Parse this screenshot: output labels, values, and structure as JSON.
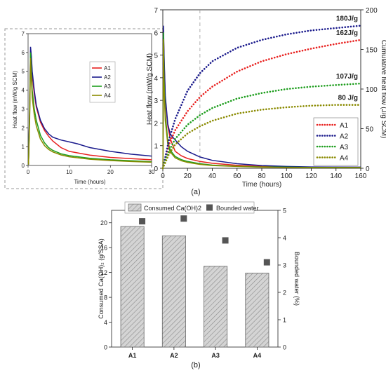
{
  "figure": {
    "panel_a_label": "(a)",
    "panel_b_label": "(b)"
  },
  "chart_data": [
    {
      "id": "inset",
      "type": "line",
      "xlabel": "Time (hours)",
      "ylabel": "Heat flow (mW/g SCM)",
      "xlim": [
        0,
        30
      ],
      "ylim": [
        0,
        7
      ],
      "xticks": [
        0,
        10,
        20,
        30
      ],
      "yticks": [
        0,
        1,
        2,
        3,
        4,
        5,
        6,
        7
      ],
      "legend": "center-right",
      "series": [
        {
          "name": "A1",
          "color": "#e8211f",
          "x": [
            0.1,
            0.4,
            0.6,
            0.8,
            1,
            1.5,
            2,
            3,
            4,
            5,
            6,
            8,
            10,
            15,
            20,
            25,
            30
          ],
          "y": [
            0.05,
            3.0,
            6.1,
            5.6,
            4.8,
            3.8,
            3.1,
            2.3,
            1.85,
            1.55,
            1.3,
            0.95,
            0.75,
            0.55,
            0.43,
            0.36,
            0.3
          ]
        },
        {
          "name": "A2",
          "color": "#1a1a8c",
          "x": [
            0.1,
            0.4,
            0.6,
            0.8,
            1,
            1.5,
            2,
            3,
            4,
            5,
            6,
            8,
            10,
            12,
            15,
            20,
            25,
            30
          ],
          "y": [
            0.05,
            3.2,
            6.3,
            5.8,
            5.0,
            4.0,
            3.2,
            2.4,
            1.95,
            1.68,
            1.5,
            1.35,
            1.25,
            1.15,
            0.95,
            0.75,
            0.6,
            0.5
          ]
        },
        {
          "name": "A3",
          "color": "#1e9e1e",
          "x": [
            0.1,
            0.4,
            0.6,
            0.8,
            1,
            1.5,
            2,
            3,
            4,
            5,
            6,
            8,
            10,
            15,
            20,
            25,
            30
          ],
          "y": [
            0.05,
            2.8,
            6.0,
            5.0,
            4.0,
            3.0,
            2.4,
            1.6,
            1.2,
            0.95,
            0.8,
            0.62,
            0.52,
            0.38,
            0.3,
            0.25,
            0.2
          ]
        },
        {
          "name": "A4",
          "color": "#8a8a00",
          "x": [
            0.1,
            0.4,
            0.6,
            0.8,
            1,
            1.5,
            2,
            3,
            4,
            5,
            6,
            8,
            10,
            15,
            20,
            25,
            30
          ],
          "y": [
            0.05,
            2.5,
            5.7,
            4.6,
            3.6,
            2.7,
            2.1,
            1.4,
            1.05,
            0.85,
            0.72,
            0.56,
            0.46,
            0.33,
            0.26,
            0.21,
            0.17
          ]
        }
      ]
    },
    {
      "id": "main",
      "type": "line",
      "xlabel": "Time (hours)",
      "ylabel_left": "Heat flow (mW/g SCM)",
      "ylabel_right": "Cumulative heat flow (J/g SCM)",
      "xlim": [
        0,
        160
      ],
      "ylim_left": [
        0,
        7
      ],
      "ylim_right": [
        0,
        200
      ],
      "xticks": [
        0,
        20,
        40,
        60,
        80,
        100,
        120,
        140,
        160
      ],
      "yticks_left": [
        0,
        1,
        2,
        3,
        4,
        5,
        6,
        7
      ],
      "yticks_right": [
        0,
        50,
        100,
        150,
        200
      ],
      "reference_line_x": 30,
      "legend": "bottom-right",
      "heat_flow_series": [
        {
          "name": "A1",
          "color": "#e8211f",
          "x": [
            0.1,
            0.5,
            1,
            2,
            4,
            6,
            10,
            15,
            20,
            30,
            40,
            60,
            80,
            100,
            120,
            160
          ],
          "y": [
            0.05,
            6.1,
            4.8,
            3.1,
            1.85,
            1.3,
            0.75,
            0.55,
            0.43,
            0.3,
            0.22,
            0.13,
            0.08,
            0.06,
            0.05,
            0.04
          ]
        },
        {
          "name": "A2",
          "color": "#1a1a8c",
          "x": [
            0.1,
            0.5,
            1,
            2,
            4,
            6,
            10,
            15,
            20,
            30,
            40,
            60,
            80,
            100,
            120,
            160
          ],
          "y": [
            0.05,
            6.3,
            5.0,
            3.2,
            1.95,
            1.5,
            1.25,
            0.95,
            0.75,
            0.5,
            0.35,
            0.2,
            0.12,
            0.08,
            0.06,
            0.05
          ]
        },
        {
          "name": "A3",
          "color": "#1e9e1e",
          "x": [
            0.1,
            0.5,
            1,
            2,
            4,
            6,
            10,
            15,
            20,
            30,
            40,
            60,
            80,
            100,
            120,
            160
          ],
          "y": [
            0.05,
            6.0,
            4.0,
            2.4,
            1.2,
            0.8,
            0.52,
            0.38,
            0.3,
            0.2,
            0.14,
            0.09,
            0.06,
            0.05,
            0.04,
            0.03
          ]
        },
        {
          "name": "A4",
          "color": "#8a8a00",
          "x": [
            0.1,
            0.5,
            1,
            2,
            4,
            6,
            10,
            15,
            20,
            30,
            40,
            60,
            80,
            100,
            120,
            160
          ],
          "y": [
            0.05,
            5.7,
            3.6,
            2.1,
            1.05,
            0.72,
            0.46,
            0.33,
            0.26,
            0.17,
            0.12,
            0.08,
            0.05,
            0.04,
            0.03,
            0.03
          ]
        }
      ],
      "cumulative_series": [
        {
          "name": "A1",
          "color": "#e8211f",
          "final_label": "162J/g",
          "x": [
            0,
            2,
            5,
            10,
            20,
            30,
            40,
            60,
            80,
            100,
            120,
            140,
            160
          ],
          "y": [
            0,
            12,
            30,
            48,
            72,
            90,
            103,
            122,
            135,
            144,
            151,
            157,
            162
          ]
        },
        {
          "name": "A2",
          "color": "#1a1a8c",
          "final_label": "180J/g",
          "x": [
            0,
            2,
            5,
            10,
            20,
            30,
            40,
            60,
            80,
            100,
            120,
            140,
            160
          ],
          "y": [
            0,
            14,
            36,
            62,
            98,
            120,
            135,
            152,
            162,
            169,
            174,
            177,
            180
          ]
        },
        {
          "name": "A3",
          "color": "#1e9e1e",
          "final_label": "107J/g",
          "x": [
            0,
            2,
            5,
            10,
            20,
            30,
            40,
            60,
            80,
            100,
            120,
            140,
            160
          ],
          "y": [
            0,
            9,
            22,
            37,
            55,
            67,
            76,
            88,
            95,
            100,
            103,
            105,
            107
          ]
        },
        {
          "name": "A4",
          "color": "#8a8a00",
          "final_label": "80 J/g",
          "x": [
            0,
            2,
            5,
            10,
            20,
            30,
            40,
            60,
            80,
            100,
            120,
            140,
            160
          ],
          "y": [
            0,
            7,
            18,
            30,
            44,
            53,
            60,
            69,
            74,
            77,
            79,
            80,
            80
          ]
        }
      ]
    },
    {
      "id": "bars",
      "type": "bar",
      "categories": [
        "A1",
        "A2",
        "A3",
        "A4"
      ],
      "ylabel_left": "Consumed Ca(OH)₂ (g/SSA)",
      "ylabel_right": "Bounded water (%)",
      "ylim_left": [
        0,
        22
      ],
      "ylim_right": [
        0,
        5
      ],
      "yticks_left": [
        0,
        4,
        8,
        12,
        16,
        20
      ],
      "yticks_right": [
        0,
        1,
        2,
        3,
        4,
        5
      ],
      "legend": "top",
      "series": [
        {
          "name": "Consumed Ca(OH)2",
          "kind": "bar",
          "fill": "#c8c8c8",
          "pattern": "hatched",
          "values": [
            19.4,
            17.9,
            13.0,
            11.9
          ]
        },
        {
          "name": "Bounded water",
          "kind": "marker",
          "color": "#555555",
          "values": [
            4.6,
            4.7,
            3.9,
            3.1
          ]
        }
      ]
    }
  ]
}
